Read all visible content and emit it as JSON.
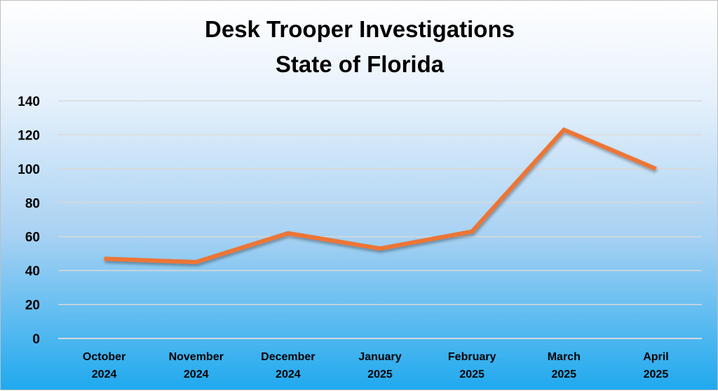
{
  "chart_data": {
    "type": "line",
    "title": [
      "Desk Trooper Investigations",
      "State of Florida"
    ],
    "categories": [
      [
        "October",
        "2024"
      ],
      [
        "November",
        "2024"
      ],
      [
        "December",
        "2024"
      ],
      [
        "January",
        "2025"
      ],
      [
        "February",
        "2025"
      ],
      [
        "March",
        "2025"
      ],
      [
        "April",
        "2025"
      ]
    ],
    "values": [
      47,
      45,
      62,
      53,
      63,
      123,
      100
    ],
    "ylim": [
      0,
      140
    ],
    "yticks": [
      0,
      20,
      40,
      60,
      80,
      100,
      120,
      140
    ],
    "grid": true,
    "legend": "none",
    "line_color": "#ed7434"
  }
}
